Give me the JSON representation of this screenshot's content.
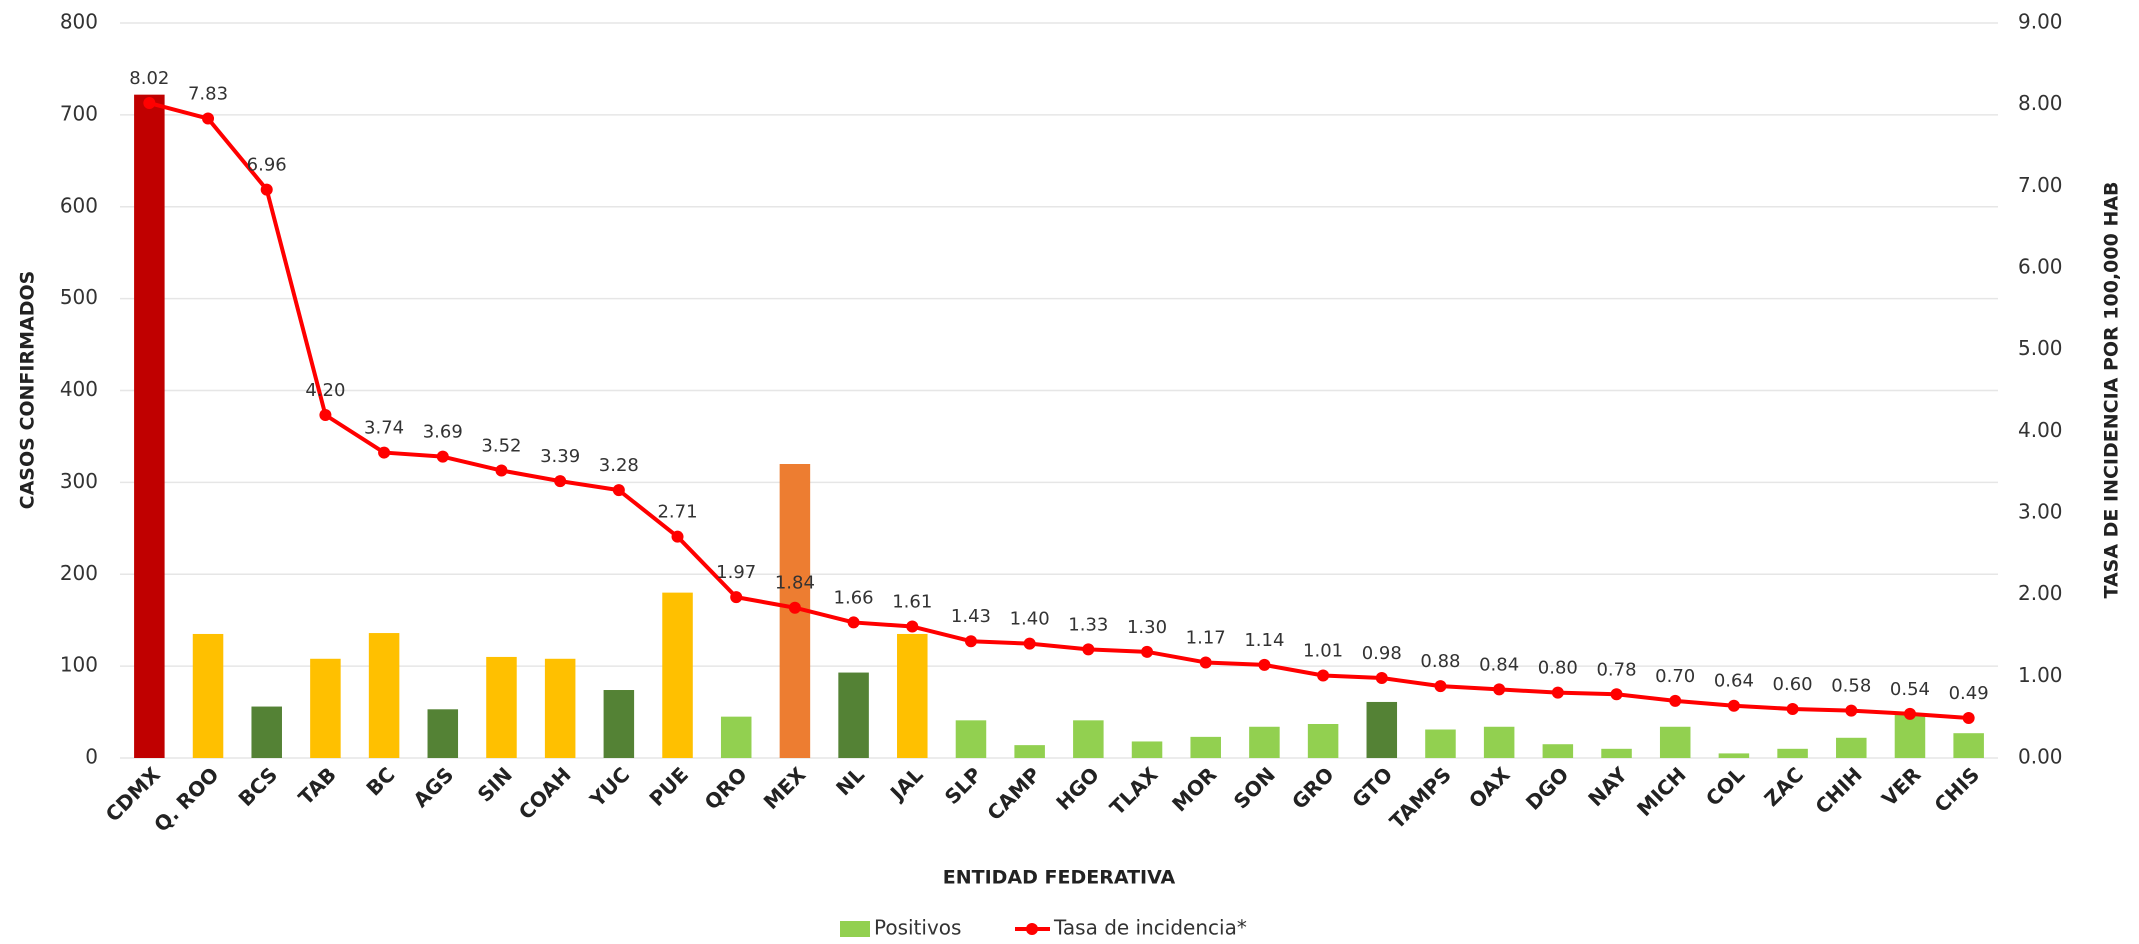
{
  "chart_data": {
    "type": "bar_line",
    "x_label": "ENTIDAD FEDERATIVA",
    "y_label": "CASOS CONFIRMADOS",
    "y2_label": "TASA DE INCIDENCIA POR  100,000 HAB",
    "categories": [
      "CDMX",
      "Q. ROO",
      "BCS",
      "TAB",
      "BC",
      "AGS",
      "SIN",
      "COAH",
      "YUC",
      "PUE",
      "QRO",
      "MEX",
      "NL",
      "JAL",
      "SLP",
      "CAMP",
      "HGO",
      "TLAX",
      "MOR",
      "SON",
      "GRO",
      "GTO",
      "TAMPS",
      "OAX",
      "DGO",
      "NAY",
      "MICH",
      "COL",
      "ZAC",
      "CHIH",
      "VER",
      "CHIS"
    ],
    "series": [
      {
        "name": "Positivos",
        "color": "#92d050",
        "colors": [
          "#c00000",
          "#ffc000",
          "#548235",
          "#ffc000",
          "#ffc000",
          "#548235",
          "#ffc000",
          "#ffc000",
          "#548235",
          "#ffc000",
          "#92d050",
          "#ed7d31",
          "#548235",
          "#ffc000",
          "#92d050",
          "#92d050",
          "#92d050",
          "#92d050",
          "#92d050",
          "#92d050",
          "#92d050",
          "#548235",
          "#92d050",
          "#92d050",
          "#92d050",
          "#92d050",
          "#92d050",
          "#92d050",
          "#92d050",
          "#92d050",
          "#92d050",
          "#92d050"
        ],
        "values": [
          722,
          135,
          56,
          108,
          136,
          53,
          110,
          108,
          74,
          180,
          45,
          320,
          93,
          135,
          41,
          14,
          41,
          18,
          23,
          34,
          37,
          61,
          31,
          34,
          15,
          10,
          34,
          5,
          10,
          22,
          48,
          27
        ]
      },
      {
        "name": "Tasa de incidencia*",
        "color": "#ff0000",
        "axis": "y2",
        "values": [
          8.02,
          7.83,
          6.96,
          4.2,
          3.74,
          3.69,
          3.52,
          3.39,
          3.28,
          2.71,
          1.97,
          1.84,
          1.66,
          1.61,
          1.43,
          1.4,
          1.33,
          1.3,
          1.17,
          1.14,
          1.01,
          0.98,
          0.88,
          0.84,
          0.8,
          0.78,
          0.7,
          0.64,
          0.6,
          0.58,
          0.54,
          0.49
        ],
        "value_labels": [
          "8.02",
          "7.83",
          "6.96",
          "4.20",
          "3.74",
          "3.69",
          "3.52",
          "3.39",
          "3.28",
          "2.71",
          "1.97",
          "1.84",
          "1.66",
          "1.61",
          "1.43",
          "1.40",
          "1.33",
          "1.30",
          "1.17",
          "1.14",
          "1.01",
          "0.98",
          "0.88",
          "0.84",
          "0.80",
          "0.78",
          "0.70",
          "0.64",
          "0.60",
          "0.58",
          "0.54",
          "0.49"
        ]
      }
    ],
    "ylim": [
      0,
      800
    ],
    "yticks": [
      0,
      100,
      200,
      300,
      400,
      500,
      600,
      700,
      800
    ],
    "y2lim": [
      0,
      9
    ],
    "y2ticks": [
      {
        "value": 0,
        "label": "0.00"
      },
      {
        "value": 1,
        "label": "1.00"
      },
      {
        "value": 2,
        "label": "2.00"
      },
      {
        "value": 3,
        "label": "3.00"
      },
      {
        "value": 4,
        "label": "4.00"
      },
      {
        "value": 5,
        "label": "5.00"
      },
      {
        "value": 6,
        "label": "6.00"
      },
      {
        "value": 7,
        "label": "7.00"
      },
      {
        "value": 8,
        "label": "8.00"
      },
      {
        "value": 9,
        "label": "9.00"
      }
    ],
    "grid": true
  }
}
